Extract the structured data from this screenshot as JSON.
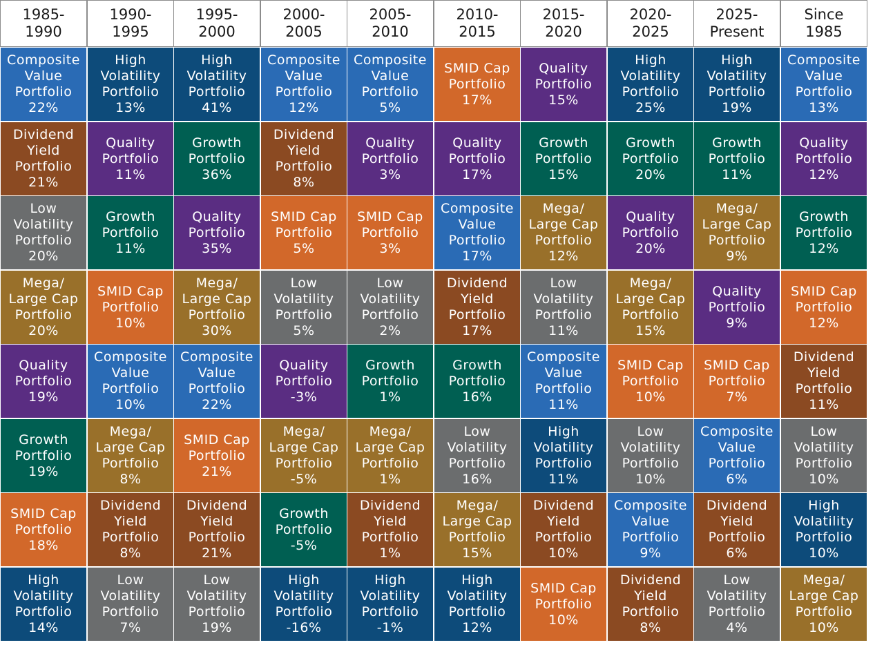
{
  "chart_data": {
    "type": "table",
    "title": "",
    "periods": [
      "1985-\n1990",
      "1990-\n1995",
      "1995-\n2000",
      "2000-\n2005",
      "2005-\n2010",
      "2010-\n2015",
      "2015-\n2020",
      "2020-\n2025",
      "2025-\nPresent",
      "Since\n1985"
    ],
    "portfolios": {
      "cv": {
        "label": "Composite\nValue\nPortfolio",
        "color": "#2a6bb5"
      },
      "hv": {
        "label": "High\nVolatility\nPortfolio",
        "color": "#0d4b7a"
      },
      "dy": {
        "label": "Dividend\nYield\nPortfolio",
        "color": "#8b4a22"
      },
      "q": {
        "label": "Quality\nPortfolio",
        "color": "#5a2d82"
      },
      "g": {
        "label": "Growth\nPortfolio",
        "color": "#005f52"
      },
      "lv": {
        "label": "Low\nVolatility\nPortfolio",
        "color": "#6b6d6e"
      },
      "ml": {
        "label": "Mega/\nLarge Cap\nPortfolio",
        "color": "#99702a"
      },
      "sm": {
        "label": "SMID Cap\nPortfolio",
        "color": "#d2682a"
      }
    },
    "columns": [
      [
        {
          "p": "cv",
          "v": "22%"
        },
        {
          "p": "dy",
          "v": "21%"
        },
        {
          "p": "lv",
          "v": "20%"
        },
        {
          "p": "ml",
          "v": "20%"
        },
        {
          "p": "q",
          "v": "19%"
        },
        {
          "p": "g",
          "v": "19%"
        },
        {
          "p": "sm",
          "v": "18%"
        },
        {
          "p": "hv",
          "v": "14%"
        }
      ],
      [
        {
          "p": "hv",
          "v": "13%"
        },
        {
          "p": "q",
          "v": "11%"
        },
        {
          "p": "g",
          "v": "11%"
        },
        {
          "p": "sm",
          "v": "10%"
        },
        {
          "p": "cv",
          "v": "10%"
        },
        {
          "p": "ml",
          "v": "8%"
        },
        {
          "p": "dy",
          "v": "8%"
        },
        {
          "p": "lv",
          "v": "7%"
        }
      ],
      [
        {
          "p": "hv",
          "v": "41%"
        },
        {
          "p": "g",
          "v": "36%"
        },
        {
          "p": "q",
          "v": "35%"
        },
        {
          "p": "ml",
          "v": "30%"
        },
        {
          "p": "cv",
          "v": "22%"
        },
        {
          "p": "sm",
          "v": "21%"
        },
        {
          "p": "dy",
          "v": "21%"
        },
        {
          "p": "lv",
          "v": "19%"
        }
      ],
      [
        {
          "p": "cv",
          "v": "12%"
        },
        {
          "p": "dy",
          "v": "8%"
        },
        {
          "p": "sm",
          "v": "5%"
        },
        {
          "p": "lv",
          "v": "5%"
        },
        {
          "p": "q",
          "v": "-3%"
        },
        {
          "p": "ml",
          "v": "-5%"
        },
        {
          "p": "g",
          "v": "-5%"
        },
        {
          "p": "hv",
          "v": "-16%"
        }
      ],
      [
        {
          "p": "cv",
          "v": "5%"
        },
        {
          "p": "q",
          "v": "3%"
        },
        {
          "p": "sm",
          "v": "3%"
        },
        {
          "p": "lv",
          "v": "2%"
        },
        {
          "p": "g",
          "v": "1%"
        },
        {
          "p": "ml",
          "v": "1%"
        },
        {
          "p": "dy",
          "v": "1%"
        },
        {
          "p": "hv",
          "v": "-1%"
        }
      ],
      [
        {
          "p": "sm",
          "v": "17%"
        },
        {
          "p": "q",
          "v": "17%"
        },
        {
          "p": "cv",
          "v": "17%"
        },
        {
          "p": "dy",
          "v": "17%"
        },
        {
          "p": "g",
          "v": "16%"
        },
        {
          "p": "lv",
          "v": "16%"
        },
        {
          "p": "ml",
          "v": "15%"
        },
        {
          "p": "hv",
          "v": "12%"
        }
      ],
      [
        {
          "p": "q",
          "v": "15%"
        },
        {
          "p": "g",
          "v": "15%"
        },
        {
          "p": "ml",
          "v": "12%"
        },
        {
          "p": "lv",
          "v": "11%"
        },
        {
          "p": "cv",
          "v": "11%"
        },
        {
          "p": "hv",
          "v": "11%"
        },
        {
          "p": "dy",
          "v": "10%"
        },
        {
          "p": "sm",
          "v": "10%"
        }
      ],
      [
        {
          "p": "hv",
          "v": "25%"
        },
        {
          "p": "g",
          "v": "20%"
        },
        {
          "p": "q",
          "v": "20%"
        },
        {
          "p": "ml",
          "v": "15%"
        },
        {
          "p": "sm",
          "v": "10%"
        },
        {
          "p": "lv",
          "v": "10%"
        },
        {
          "p": "cv",
          "v": "9%"
        },
        {
          "p": "dy",
          "v": "8%"
        }
      ],
      [
        {
          "p": "hv",
          "v": "19%"
        },
        {
          "p": "g",
          "v": "11%"
        },
        {
          "p": "ml",
          "v": "9%"
        },
        {
          "p": "q",
          "v": "9%"
        },
        {
          "p": "sm",
          "v": "7%"
        },
        {
          "p": "cv",
          "v": "6%"
        },
        {
          "p": "dy",
          "v": "6%"
        },
        {
          "p": "lv",
          "v": "4%"
        }
      ],
      [
        {
          "p": "cv",
          "v": "13%"
        },
        {
          "p": "q",
          "v": "12%"
        },
        {
          "p": "g",
          "v": "12%"
        },
        {
          "p": "sm",
          "v": "12%"
        },
        {
          "p": "dy",
          "v": "11%"
        },
        {
          "p": "lv",
          "v": "10%"
        },
        {
          "p": "hv",
          "v": "10%"
        },
        {
          "p": "ml",
          "v": "10%"
        }
      ]
    ]
  }
}
